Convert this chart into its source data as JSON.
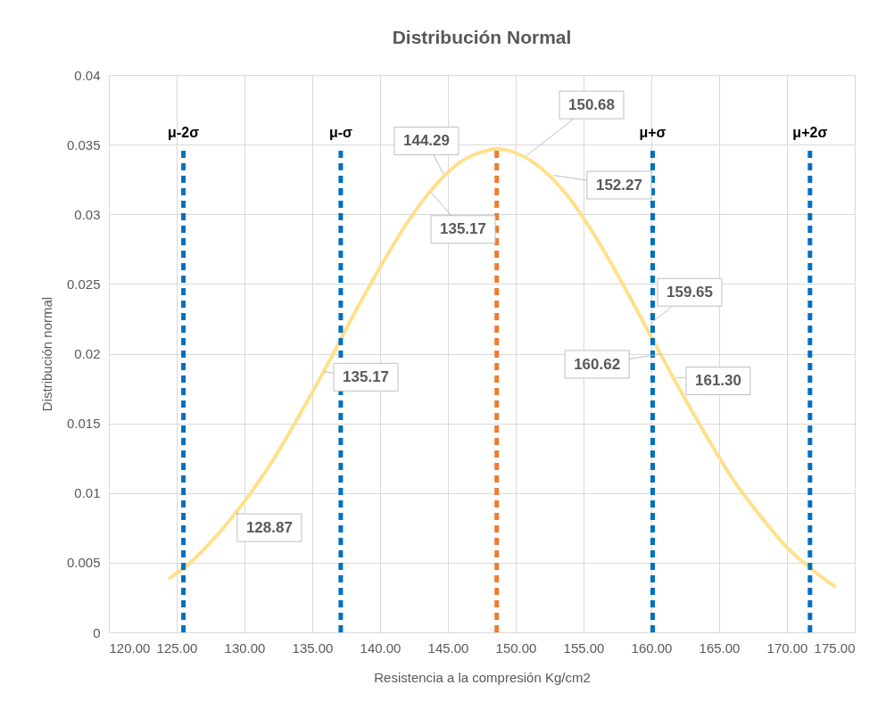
{
  "chart_data": {
    "type": "line",
    "title": "Distribución  Normal",
    "xlabel": "Resistencia a la compresión Kg/cm2",
    "ylabel": "Distribución normal",
    "xlim": [
      120,
      175
    ],
    "ylim": [
      0,
      0.04
    ],
    "xticks": [
      {
        "value": 120,
        "label": "120.00"
      },
      {
        "value": 125,
        "label": "125.00"
      },
      {
        "value": 130,
        "label": "130.00"
      },
      {
        "value": 135,
        "label": "135.00"
      },
      {
        "value": 140,
        "label": "140.00"
      },
      {
        "value": 145,
        "label": "145.00"
      },
      {
        "value": 150,
        "label": "150.00"
      },
      {
        "value": 155,
        "label": "155.00"
      },
      {
        "value": 160,
        "label": "160.00"
      },
      {
        "value": 165,
        "label": "165.00"
      },
      {
        "value": 170,
        "label": "170.00"
      },
      {
        "value": 175,
        "label": "175.00"
      }
    ],
    "yticks": [
      0,
      0.005,
      0.01,
      0.015,
      0.02,
      0.025,
      0.03,
      0.035,
      0.04
    ],
    "grid": true,
    "marker": "none",
    "line_style": "solid",
    "series": [
      {
        "color": "#ffe08a",
        "x": [
          124.5,
          126,
          128,
          130,
          132,
          134,
          136,
          138,
          140,
          142,
          144,
          146,
          148,
          148.6,
          150,
          152,
          154,
          156,
          158,
          160,
          162,
          164,
          166,
          168,
          170,
          172,
          173.5
        ],
        "values": [
          0.0039,
          0.005,
          0.007,
          0.0094,
          0.0122,
          0.0155,
          0.019,
          0.0227,
          0.0262,
          0.0294,
          0.032,
          0.0338,
          0.0346,
          0.0347,
          0.0344,
          0.0332,
          0.0311,
          0.0282,
          0.0248,
          0.0212,
          0.0176,
          0.0142,
          0.011,
          0.0084,
          0.0061,
          0.0044,
          0.0033
        ]
      }
    ],
    "ref_lines": [
      {
        "axis": "x",
        "value": 125.5,
        "label": "μ-2σ",
        "color": "#0070c0",
        "line_style": "dashed"
      },
      {
        "axis": "x",
        "value": 137.1,
        "label": "μ-σ",
        "color": "#0070c0",
        "line_style": "dashed"
      },
      {
        "axis": "x",
        "value": 148.6,
        "color": "#ed7d31",
        "line_style": "dashed"
      },
      {
        "axis": "x",
        "value": 160.1,
        "label": "μ+σ",
        "color": "#0070c0",
        "line_style": "dashed"
      },
      {
        "axis": "x",
        "value": 171.7,
        "label": "μ+2σ",
        "color": "#0070c0",
        "line_style": "dashed"
      }
    ],
    "annotations": [
      {
        "text": "144.29",
        "x": 144.67,
        "y": 0.0329
      },
      {
        "text": "135.17",
        "x": 143.75,
        "y": 0.0316
      },
      {
        "text": "150.68",
        "x": 150.79,
        "y": 0.0342
      },
      {
        "text": "152.27",
        "x": 152.76,
        "y": 0.0328
      },
      {
        "text": "159.65",
        "x": 159.87,
        "y": 0.0221
      },
      {
        "text": "160.62",
        "x": 160.8,
        "y": 0.02
      },
      {
        "text": "161.30",
        "x": 161.84,
        "y": 0.0183
      },
      {
        "text": "135.17",
        "x": 135.86,
        "y": 0.0187
      },
      {
        "text": "128.87",
        "x": 129.4,
        "y": 0.0086
      }
    ]
  }
}
